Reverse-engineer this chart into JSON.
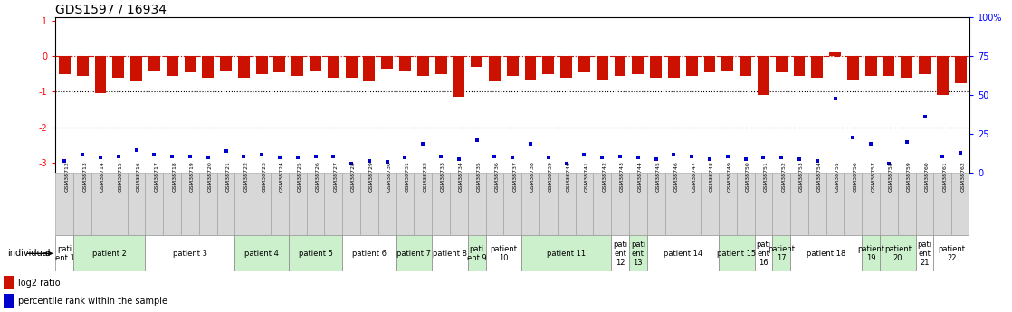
{
  "title": "GDS1597 / 16934",
  "samples": [
    "GSM38712",
    "GSM38713",
    "GSM38714",
    "GSM38715",
    "GSM38716",
    "GSM38717",
    "GSM38718",
    "GSM38719",
    "GSM38720",
    "GSM38721",
    "GSM38722",
    "GSM38723",
    "GSM38724",
    "GSM38725",
    "GSM38726",
    "GSM38727",
    "GSM38728",
    "GSM38729",
    "GSM38730",
    "GSM38731",
    "GSM38732",
    "GSM38733",
    "GSM38734",
    "GSM38735",
    "GSM38736",
    "GSM38737",
    "GSM38738",
    "GSM38739",
    "GSM38740",
    "GSM38741",
    "GSM38742",
    "GSM38743",
    "GSM38744",
    "GSM38745",
    "GSM38746",
    "GSM38747",
    "GSM38748",
    "GSM38749",
    "GSM38750",
    "GSM38751",
    "GSM38752",
    "GSM38753",
    "GSM38754",
    "GSM38755",
    "GSM38756",
    "GSM38757",
    "GSM38758",
    "GSM38759",
    "GSM38760",
    "GSM38761",
    "GSM38762"
  ],
  "log2_ratio": [
    -0.5,
    -0.55,
    -1.05,
    -0.6,
    -0.7,
    -0.4,
    -0.55,
    -0.45,
    -0.6,
    -0.4,
    -0.6,
    -0.5,
    -0.45,
    -0.55,
    -0.4,
    -0.6,
    -0.6,
    -0.7,
    -0.35,
    -0.4,
    -0.55,
    -0.5,
    -1.15,
    -0.3,
    -0.7,
    -0.55,
    -0.65,
    -0.5,
    -0.6,
    -0.45,
    -0.65,
    -0.55,
    -0.5,
    -0.6,
    -0.6,
    -0.55,
    -0.45,
    -0.4,
    -0.55,
    -1.1,
    -0.45,
    -0.55,
    -0.6,
    0.1,
    -0.65,
    -0.55,
    -0.55,
    -0.6,
    -0.5,
    -1.1,
    -0.75
  ],
  "percentile_rank": [
    8,
    12,
    10,
    11,
    15,
    12,
    11,
    11,
    10,
    14,
    11,
    12,
    10,
    10,
    11,
    11,
    6,
    8,
    7,
    10,
    19,
    11,
    9,
    21,
    11,
    10,
    19,
    10,
    6,
    12,
    10,
    11,
    10,
    9,
    12,
    11,
    9,
    11,
    9,
    10,
    10,
    9,
    8,
    48,
    23,
    19,
    6,
    20,
    36,
    11,
    13
  ],
  "patients": [
    {
      "label": "pati\nent 1",
      "start": 0,
      "end": 1,
      "color": "#ffffff"
    },
    {
      "label": "patient 2",
      "start": 1,
      "end": 5,
      "color": "#ccf0cc"
    },
    {
      "label": "patient 3",
      "start": 5,
      "end": 10,
      "color": "#ffffff"
    },
    {
      "label": "patient 4",
      "start": 10,
      "end": 13,
      "color": "#ccf0cc"
    },
    {
      "label": "patient 5",
      "start": 13,
      "end": 16,
      "color": "#ccf0cc"
    },
    {
      "label": "patient 6",
      "start": 16,
      "end": 19,
      "color": "#ffffff"
    },
    {
      "label": "patient 7",
      "start": 19,
      "end": 21,
      "color": "#ccf0cc"
    },
    {
      "label": "patient 8",
      "start": 21,
      "end": 23,
      "color": "#ffffff"
    },
    {
      "label": "pati\nent 9",
      "start": 23,
      "end": 24,
      "color": "#ccf0cc"
    },
    {
      "label": "patient\n10",
      "start": 24,
      "end": 26,
      "color": "#ffffff"
    },
    {
      "label": "patient 11",
      "start": 26,
      "end": 31,
      "color": "#ccf0cc"
    },
    {
      "label": "pati\nent\n12",
      "start": 31,
      "end": 32,
      "color": "#ffffff"
    },
    {
      "label": "pati\nent\n13",
      "start": 32,
      "end": 33,
      "color": "#ccf0cc"
    },
    {
      "label": "patient 14",
      "start": 33,
      "end": 37,
      "color": "#ffffff"
    },
    {
      "label": "patient 15",
      "start": 37,
      "end": 39,
      "color": "#ccf0cc"
    },
    {
      "label": "pati\nent\n16",
      "start": 39,
      "end": 40,
      "color": "#ffffff"
    },
    {
      "label": "patient\n17",
      "start": 40,
      "end": 41,
      "color": "#ccf0cc"
    },
    {
      "label": "patient 18",
      "start": 41,
      "end": 45,
      "color": "#ffffff"
    },
    {
      "label": "patient\n19",
      "start": 45,
      "end": 46,
      "color": "#ccf0cc"
    },
    {
      "label": "patient\n20",
      "start": 46,
      "end": 48,
      "color": "#ccf0cc"
    },
    {
      "label": "pati\nent\n21",
      "start": 48,
      "end": 49,
      "color": "#ffffff"
    },
    {
      "label": "patient\n22",
      "start": 49,
      "end": 51,
      "color": "#ffffff"
    }
  ],
  "ylim": [
    -3.3,
    1.1
  ],
  "y_ticks_left": [
    1,
    0,
    -1,
    -2,
    -3
  ],
  "y_ticks_right_vals": [
    1.0,
    0.75,
    0.5,
    0.25,
    0.0
  ],
  "y_ticks_right_labels": [
    "100%",
    "75",
    "50",
    "25",
    "0"
  ],
  "bar_color": "#cc1100",
  "dot_color": "#0000cc",
  "bg_color": "#ffffff",
  "plot_bg_color": "#ffffff",
  "title_fontsize": 10,
  "tick_fontsize": 7,
  "sample_fontsize": 4.5,
  "patient_fontsize": 6,
  "legend_fontsize": 7
}
